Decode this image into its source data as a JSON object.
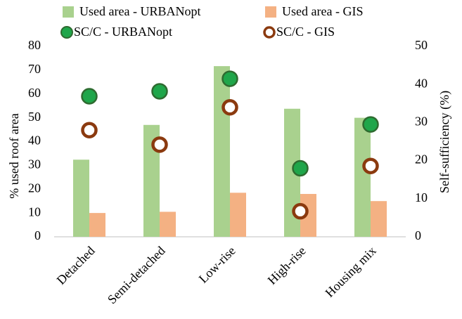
{
  "chart_data": {
    "type": "bar",
    "categories": [
      "Detached",
      "Semi-detached",
      "Low-rise",
      "High-rise",
      "Housing mix"
    ],
    "series": [
      {
        "name": "Used area - URBANopt",
        "type": "bar",
        "color": "#a9d18e",
        "values": [
          32.4,
          47,
          71.7,
          53.8,
          50
        ]
      },
      {
        "name": "Used area - GIS",
        "type": "bar",
        "color": "#f4b183",
        "values": [
          10,
          10.5,
          18.5,
          18,
          15
        ]
      },
      {
        "name": "SC/C - URBANopt",
        "type": "scatter",
        "axis": "y2",
        "color": "#1fa64a",
        "values": [
          36.9,
          38.2,
          41.5,
          18,
          29.5
        ]
      },
      {
        "name": "SC/C - GIS",
        "type": "scatter",
        "axis": "y2",
        "color": "#8b3a0f",
        "values": [
          28,
          24.2,
          34,
          6.7,
          18.6
        ]
      }
    ],
    "ylabel": "% used roof area",
    "y2label": "Self-sufficiency (%)",
    "ylim": [
      0,
      80
    ],
    "yticks": [
      0,
      10,
      20,
      30,
      40,
      50,
      60,
      70,
      80
    ],
    "y2lim": [
      0,
      50
    ],
    "y2ticks": [
      0,
      10,
      20,
      30,
      40,
      50
    ],
    "grid": false
  }
}
